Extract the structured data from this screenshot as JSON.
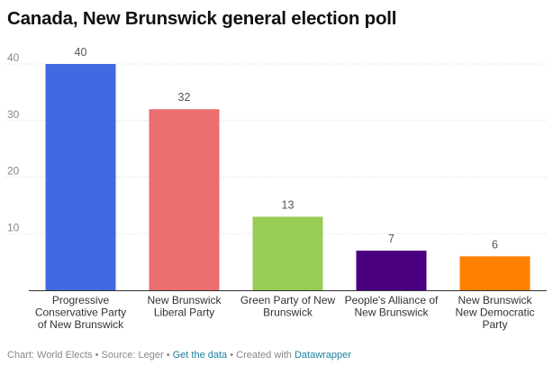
{
  "chart_data": {
    "type": "bar",
    "title": "Canada, New Brunswick general election poll",
    "categories": [
      "Progressive Conservative Party of New Brunswick",
      "New Brunswick Liberal Party",
      "Green Party of New Brunswick",
      "People's Alliance of New Brunswick",
      "New Brunswick New Democratic Party"
    ],
    "category_lines": [
      [
        "Progressive",
        "Conservative Party",
        "of New Brunswick"
      ],
      [
        "New Brunswick",
        "Liberal Party"
      ],
      [
        "Green Party of New",
        "Brunswick"
      ],
      [
        "People's Alliance of",
        "New Brunswick"
      ],
      [
        "New Brunswick",
        "New Democratic",
        "Party"
      ]
    ],
    "values": [
      40,
      32,
      13,
      7,
      6
    ],
    "colors": [
      "#4169e1",
      "#eb6e6e",
      "#99cc55",
      "#4b0082",
      "#ff8000"
    ],
    "ylim": [
      0,
      40
    ],
    "yticks": [
      10,
      20,
      30,
      40
    ],
    "grid": true,
    "xlabel": "",
    "ylabel": ""
  },
  "footer": {
    "chart_label": "Chart: World Elects",
    "source_label": "Source: Leger",
    "get_data": "Get the data",
    "created_with": "Created with",
    "tool": "Datawrapper",
    "separator": " • "
  }
}
